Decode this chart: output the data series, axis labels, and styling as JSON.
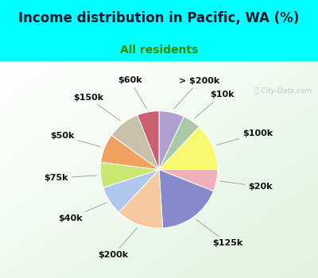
{
  "title": "Income distribution in Pacific, WA (%)",
  "subtitle": "All residents",
  "title_color": "#1a1a2e",
  "subtitle_color": "#2e8b00",
  "bg_cyan": "#00ffff",
  "watermark": "City-Data.com",
  "labels": [
    "> $200k",
    "$10k",
    "$100k",
    "$20k",
    "$125k",
    "$200k",
    "$40k",
    "$75k",
    "$50k",
    "$150k",
    "$60k"
  ],
  "values": [
    7,
    5,
    13,
    6,
    18,
    13,
    8,
    7,
    8,
    9,
    6
  ],
  "colors": [
    "#b0a0d0",
    "#a8c8a8",
    "#f8f870",
    "#f0b0bc",
    "#8888cc",
    "#f5c8a0",
    "#b0c8f0",
    "#c8e870",
    "#f0a060",
    "#c8c0a8",
    "#cc6070"
  ],
  "startangle": 90,
  "label_fontsize": 8,
  "label_color": "#111111",
  "title_fontsize": 12,
  "subtitle_fontsize": 10
}
